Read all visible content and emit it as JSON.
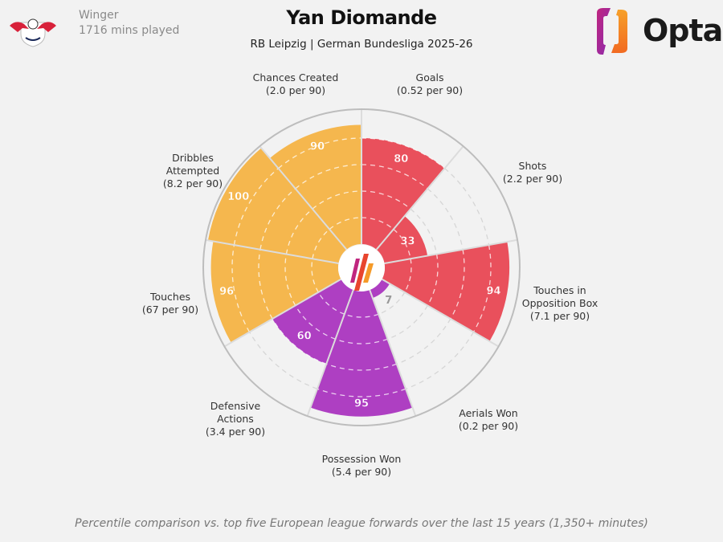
{
  "header": {
    "role": "Winger",
    "minutes": "1716 mins played",
    "title": "Yan Diomande",
    "subtitle": "RB Leipzig | German Bundesliga 2025-26",
    "brand": "Opta",
    "club_logo_text": "RB LEIPZIG"
  },
  "footnote": "Percentile comparison vs. top five European league forwards over the last 15 years (1,350+ minutes)",
  "colors": {
    "attacking": "#e9505c",
    "possession": "#f5b74e",
    "defending": "#ae3fc2",
    "background": "#f2f2f2"
  },
  "chart_data": {
    "type": "pizza",
    "title": "Yan Diomande",
    "range": [
      0,
      100
    ],
    "gridlines": [
      20,
      40,
      60,
      80
    ],
    "start_direction": "top",
    "orientation": "clockwise",
    "metrics": [
      {
        "name": "Goals",
        "per90": "(0.52 per 90)",
        "value": 80,
        "group": "attacking"
      },
      {
        "name": "Shots",
        "per90": "(2.2 per 90)",
        "value": 33,
        "group": "attacking"
      },
      {
        "name": "Touches in Opposition Box",
        "name_lines": [
          "Touches in",
          "Opposition Box"
        ],
        "per90": "(7.1 per 90)",
        "value": 94,
        "group": "attacking"
      },
      {
        "name": "Aerials Won",
        "per90": "(0.2 per 90)",
        "value": 7,
        "group": "defending"
      },
      {
        "name": "Possession Won",
        "per90": "(5.4 per 90)",
        "value": 95,
        "group": "defending"
      },
      {
        "name": "Defensive Actions",
        "name_lines": [
          "Defensive",
          "Actions"
        ],
        "per90": "(3.4 per 90)",
        "value": 60,
        "group": "defending"
      },
      {
        "name": "Touches",
        "per90": "(67 per 90)",
        "value": 96,
        "group": "possession"
      },
      {
        "name": "Dribbles Attempted",
        "name_lines": [
          "Dribbles",
          "Attempted"
        ],
        "per90": "(8.2 per 90)",
        "value": 100,
        "group": "possession"
      },
      {
        "name": "Chances Created",
        "per90": "(2.0 per 90)",
        "value": 90,
        "group": "possession"
      }
    ]
  }
}
